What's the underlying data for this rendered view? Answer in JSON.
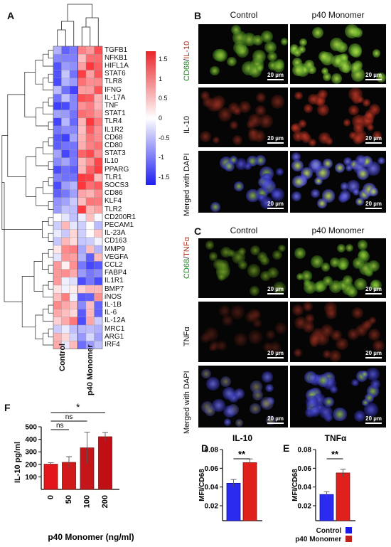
{
  "panels": {
    "A": "A",
    "B": "B",
    "C": "C",
    "D": "D",
    "E": "E",
    "F": "F"
  },
  "heatmap": {
    "genes": [
      "TGFB1",
      "NFKB1",
      "HIFL1A",
      "STAT6",
      "TLR8",
      "IFNG",
      "IL-17A",
      "TNF",
      "STAT1",
      "TLR4",
      "IL1R2",
      "CD68",
      "CD80",
      "STAT3",
      "IL10",
      "PPARG",
      "TLR1",
      "SOCS3",
      "CD86",
      "KLF4",
      "TLR2",
      "CD200R1",
      "PECAM1",
      "IL-23A",
      "CD163",
      "MMP9",
      "VEGFA",
      "CCL2",
      "FABP4",
      "IL1R1",
      "BMP7",
      "iNOS",
      "IL-1B",
      "IL-6",
      "IL-12A",
      "MRC1",
      "ARG1",
      "IRF4"
    ],
    "groups": [
      "Control",
      "p40 Monomer"
    ],
    "colorbar_ticks": [
      "1.5",
      "1",
      "0.5",
      "0",
      "-0.5",
      "-1",
      "-1.5"
    ],
    "colors": {
      "high": "#e8262a",
      "mid": "#ffffff",
      "low": "#1f1ff0"
    }
  },
  "micro_B": {
    "col_control": "Control",
    "col_p40": "p40 Monomer",
    "row1_green": "CD68",
    "row1_sep": "/",
    "row1_red": "IL-10",
    "row2": "IL-10",
    "row3": "Merged with DAPI",
    "scale": "20 µm"
  },
  "micro_C": {
    "col_control": "Control",
    "col_p40": "p40 Monomer",
    "row1_green": "CD68",
    "row1_sep": "/",
    "row1_red": "TNFα",
    "row2": "TNFα",
    "row3": "Merged with DAPI",
    "scale": "20 µm"
  },
  "chart_data": [
    {
      "panel": "F",
      "type": "bar",
      "categories": [
        "0",
        "50",
        "100",
        "200"
      ],
      "values": [
        237,
        250,
        352,
        430
      ],
      "errors": [
        10,
        40,
        110,
        30
      ],
      "xlabel": "p40 Monomer (ng/ml)",
      "ylabel": "IL-10 pg/ml",
      "ylim": [
        0,
        500
      ],
      "yticks": [
        "100",
        "200",
        "300",
        "400",
        "500"
      ],
      "sig": [
        {
          "from": "0",
          "to": "50",
          "label": "ns"
        },
        {
          "from": "0",
          "to": "100",
          "label": "ns"
        },
        {
          "from": "0",
          "to": "200",
          "label": "*"
        }
      ],
      "colors": [
        "#e3171b",
        "#d01a1a",
        "#c4161a",
        "#c00f14"
      ]
    },
    {
      "panel": "D",
      "type": "bar",
      "title": "IL-10",
      "categories": [
        "Control",
        "p40 Monomer"
      ],
      "values": [
        0.044,
        0.066
      ],
      "errors": [
        0.004,
        0.004
      ],
      "ylabel": "MFI/CD68",
      "ylim": [
        0.02,
        0.08
      ],
      "yticks": [
        "0.02",
        "0.04",
        "0.06",
        "0.08"
      ],
      "sig": "**"
    },
    {
      "panel": "E",
      "type": "bar",
      "title": "TNFα",
      "categories": [
        "Control",
        "p40 Monomer"
      ],
      "values": [
        0.032,
        0.055
      ],
      "errors": [
        0.003,
        0.004
      ],
      "ylabel": "MFI/CD68",
      "ylim": [
        0.02,
        0.08
      ],
      "yticks": [
        "0.02",
        "0.04",
        "0.06",
        "0.08"
      ],
      "sig": "**"
    }
  ],
  "legend": {
    "items": [
      {
        "label": "Control",
        "color": "#1a1ae6"
      },
      {
        "label": "p40 Monomer",
        "color": "#c0201a"
      }
    ]
  },
  "bar_colors": {
    "control": "#2b2bf0",
    "p40": "#e0201c",
    "p40_edge": "#7a1410"
  }
}
